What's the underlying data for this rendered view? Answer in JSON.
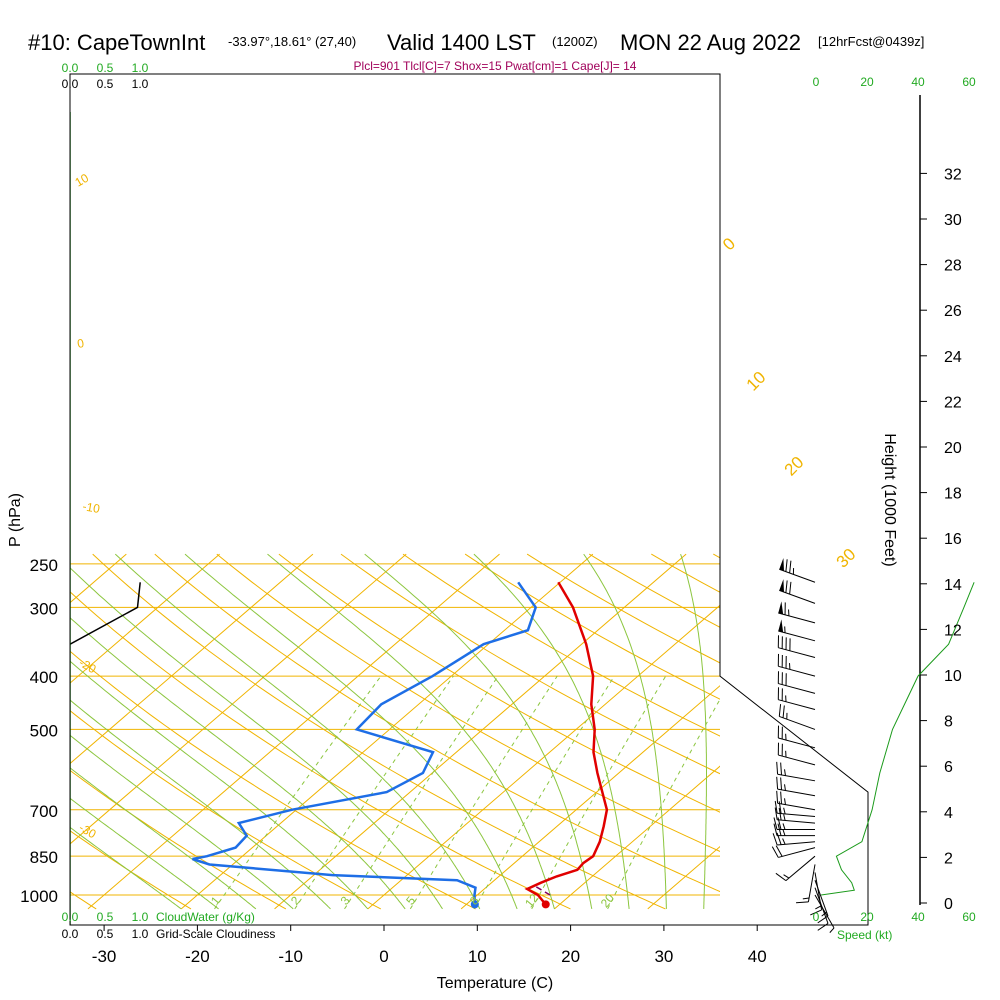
{
  "header": {
    "station": "#10: CapeTownInt",
    "coords": "-33.97°,18.61° (27,40)",
    "valid": "Valid 1400 LST",
    "utc": "(1200Z)",
    "date": "MON 22 Aug 2022",
    "forecast": "[12hrFcst@0439z]",
    "params": "Plcl=901 Tlcl[C]=7 Shox=15 Pwat[cm]=1 Cape[J]= 14"
  },
  "colors": {
    "isobar": "#f0b400",
    "isotherm": "#f0b400",
    "dry_adiabat": "#f0b400",
    "moist_adiabat": "#8cc63f",
    "mixing_ratio": "#8cc63f",
    "temperature": "#e00000",
    "dewpoint": "#1e6ee6",
    "parcel": "#800060",
    "cloud": "#000000",
    "height_line": "#1a9a1a",
    "speed_axis": "#22aa22"
  },
  "chart_data": {
    "type": "skew-t",
    "title": "#10: CapeTownInt",
    "xlabel": "Temperature (C)",
    "ylabel": "P (hPa)",
    "y2label": "Height (1000 Feet)",
    "xlim": [
      -33,
      43
    ],
    "ylim_hpa": [
      1060,
      250
    ],
    "log_pressure": true,
    "x_ticks": [
      "-30",
      "-20",
      "-10",
      "0",
      "10",
      "20",
      "30",
      "40"
    ],
    "pressure_ticks": [
      {
        "label": "250",
        "p": 250
      },
      {
        "label": "300",
        "p": 300
      },
      {
        "label": "400",
        "p": 400
      },
      {
        "label": "500",
        "p": 500
      },
      {
        "label": "700",
        "p": 700
      },
      {
        "label": "850",
        "p": 850
      },
      {
        "label": "1000",
        "p": 1000
      }
    ],
    "isobars_hpa": [
      250,
      300,
      400,
      500,
      700,
      850,
      1000
    ],
    "height_ticks_kft": [
      "32",
      "30",
      "28",
      "26",
      "24",
      "22",
      "20",
      "18",
      "16",
      "14",
      "12",
      "10",
      "8",
      "6",
      "4",
      "2",
      "0"
    ],
    "temperature_profile": {
      "name": "Temperature",
      "points": [
        {
          "p": 1040,
          "t": 18.5
        },
        {
          "p": 1000,
          "t": 16.5
        },
        {
          "p": 975,
          "t": 14.6
        },
        {
          "p": 950,
          "t": 15.3
        },
        {
          "p": 925,
          "t": 16.2
        },
        {
          "p": 900,
          "t": 17.6
        },
        {
          "p": 875,
          "t": 17.4
        },
        {
          "p": 850,
          "t": 17.6
        },
        {
          "p": 800,
          "t": 16.5
        },
        {
          "p": 750,
          "t": 15.0
        },
        {
          "p": 700,
          "t": 13.3
        },
        {
          "p": 650,
          "t": 10.6
        },
        {
          "p": 600,
          "t": 7.7
        },
        {
          "p": 550,
          "t": 4.7
        },
        {
          "p": 500,
          "t": 2.0
        },
        {
          "p": 450,
          "t": -1.5
        },
        {
          "p": 400,
          "t": -4.8
        },
        {
          "p": 350,
          "t": -9.5
        },
        {
          "p": 300,
          "t": -15.5
        },
        {
          "p": 270,
          "t": -20.2
        }
      ]
    },
    "dewpoint_profile": {
      "name": "Dewpoint",
      "points": [
        {
          "p": 1040,
          "t": 10.9
        },
        {
          "p": 1000,
          "t": 9.7
        },
        {
          "p": 970,
          "t": 8.9
        },
        {
          "p": 940,
          "t": 6.0
        },
        {
          "p": 920,
          "t": -8.0
        },
        {
          "p": 880,
          "t": -22.5
        },
        {
          "p": 860,
          "t": -25.0
        },
        {
          "p": 850,
          "t": -23.8
        },
        {
          "p": 820,
          "t": -21.8
        },
        {
          "p": 780,
          "t": -22.1
        },
        {
          "p": 740,
          "t": -24.5
        },
        {
          "p": 700,
          "t": -20.5
        },
        {
          "p": 650,
          "t": -12.5
        },
        {
          "p": 600,
          "t": -11.0
        },
        {
          "p": 550,
          "t": -12.5
        },
        {
          "p": 500,
          "t": -23.5
        },
        {
          "p": 450,
          "t": -24.0
        },
        {
          "p": 400,
          "t": -22.0
        },
        {
          "p": 350,
          "t": -20.5
        },
        {
          "p": 330,
          "t": -17.5
        },
        {
          "p": 300,
          "t": -19.5
        },
        {
          "p": 270,
          "t": -24.5
        }
      ]
    },
    "parcel_trace": {
      "points": [
        {
          "p": 1000,
          "t": 17.8
        },
        {
          "p": 960,
          "t": 14.8
        }
      ]
    },
    "surface_temperature": 18.5,
    "surface_dewpoint": 10.9,
    "isotherm_labels": [
      "-30",
      "-20",
      "-10",
      "0",
      "10",
      "20",
      "30"
    ],
    "moist_adiabat_labels": [
      "0",
      "10",
      "20",
      "30"
    ],
    "mixing_ratio_labels": [
      "1",
      "2",
      "3",
      "5",
      "8",
      "12",
      "20"
    ],
    "wind_barbs": [
      {
        "p": 270,
        "dir": 290,
        "kt": 75
      },
      {
        "p": 295,
        "dir": 290,
        "kt": 70
      },
      {
        "p": 320,
        "dir": 285,
        "kt": 65
      },
      {
        "p": 345,
        "dir": 285,
        "kt": 55
      },
      {
        "p": 370,
        "dir": 285,
        "kt": 40
      },
      {
        "p": 400,
        "dir": 285,
        "kt": 35
      },
      {
        "p": 430,
        "dir": 285,
        "kt": 30
      },
      {
        "p": 460,
        "dir": 285,
        "kt": 25
      },
      {
        "p": 500,
        "dir": 290,
        "kt": 25
      },
      {
        "p": 540,
        "dir": 285,
        "kt": 25
      },
      {
        "p": 580,
        "dir": 285,
        "kt": 25
      },
      {
        "p": 620,
        "dir": 280,
        "kt": 25
      },
      {
        "p": 660,
        "dir": 280,
        "kt": 25
      },
      {
        "p": 700,
        "dir": 280,
        "kt": 25
      },
      {
        "p": 720,
        "dir": 275,
        "kt": 25
      },
      {
        "p": 740,
        "dir": 275,
        "kt": 25
      },
      {
        "p": 760,
        "dir": 270,
        "kt": 25
      },
      {
        "p": 780,
        "dir": 270,
        "kt": 25
      },
      {
        "p": 800,
        "dir": 265,
        "kt": 25
      },
      {
        "p": 820,
        "dir": 255,
        "kt": 20
      },
      {
        "p": 850,
        "dir": 230,
        "kt": 15
      },
      {
        "p": 880,
        "dir": 190,
        "kt": 15
      },
      {
        "p": 910,
        "dir": 170,
        "kt": 15
      },
      {
        "p": 940,
        "dir": 160,
        "kt": 15
      },
      {
        "p": 970,
        "dir": 160,
        "kt": 10
      },
      {
        "p": 1000,
        "dir": 150,
        "kt": 5
      }
    ],
    "cloud_water_axis": [
      "0.0",
      "0.5",
      "1.0"
    ],
    "cloudiness_axis": [
      "0.0",
      "0.5",
      "1.0"
    ],
    "cloud_water_label": "CloudWater (g/Kg)",
    "cloudiness_label": "Grid-Scale Cloudiness",
    "cloudiness_profile": [
      {
        "p": 350,
        "v": 0.0
      },
      {
        "p": 300,
        "v": 0.75
      },
      {
        "p": 270,
        "v": 0.78
      }
    ],
    "speed_axis": [
      "0",
      "20",
      "40",
      "60"
    ],
    "speed_label": "Speed (kt)",
    "speed_profile": [
      {
        "p": 1000,
        "kt": 2
      },
      {
        "p": 980,
        "kt": 15
      },
      {
        "p": 950,
        "kt": 14
      },
      {
        "p": 900,
        "kt": 10
      },
      {
        "p": 850,
        "kt": 8
      },
      {
        "p": 800,
        "kt": 18
      },
      {
        "p": 700,
        "kt": 22
      },
      {
        "p": 600,
        "kt": 25
      },
      {
        "p": 500,
        "kt": 30
      },
      {
        "p": 400,
        "kt": 40
      },
      {
        "p": 350,
        "kt": 52
      },
      {
        "p": 300,
        "kt": 58
      },
      {
        "p": 270,
        "kt": 62
      }
    ],
    "grid": true,
    "legend": "none"
  }
}
